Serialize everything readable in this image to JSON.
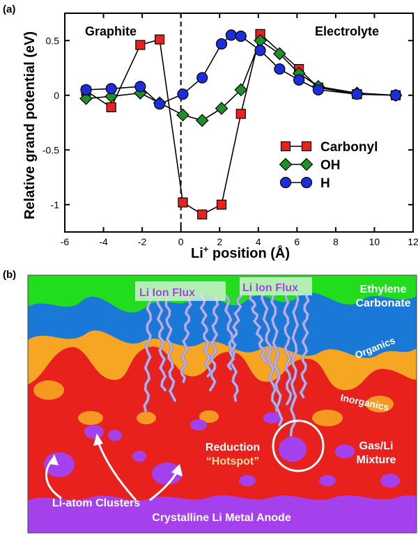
{
  "panel_a_label": "(a)",
  "panel_b_label": "(b)",
  "chart_data": {
    "type": "line",
    "xlabel": "Li",
    "xlabel_sup": "+",
    "xlabel_rest": " position (Å)",
    "ylabel": "Relative grand potential (eV)",
    "xlim": [
      -6,
      12
    ],
    "ylim": [
      -1.25,
      0.75
    ],
    "xticks": [
      -6,
      -4,
      -2,
      0,
      2,
      4,
      6,
      8,
      10,
      12
    ],
    "yticks": [
      0.5,
      0,
      -0.5,
      -1
    ],
    "ytick_labels": [
      "0.5",
      "0",
      "-0.5",
      "-1"
    ],
    "divider_x": 0,
    "region_labels": [
      "Graphite",
      "Electrolyte"
    ],
    "legend_position": "lower-right",
    "series": [
      {
        "name": "Carbonyl",
        "color": "#e8221e",
        "marker": "square",
        "x": [
          -4.9,
          -3.6,
          -2.1,
          -1.1,
          0.1,
          1.1,
          2.1,
          3.1,
          4.1,
          6.1,
          7.1,
          9.1,
          11.1
        ],
        "y": [
          0.04,
          -0.11,
          0.46,
          0.51,
          -0.98,
          -1.09,
          -1.0,
          -0.17,
          0.56,
          0.24,
          0.07,
          0.01,
          0.0
        ]
      },
      {
        "name": "OH",
        "color": "#1f8f2a",
        "marker": "diamond",
        "x": [
          -4.9,
          -3.6,
          -2.1,
          -1.1,
          0.1,
          1.1,
          2.1,
          3.1,
          4.1,
          5.1,
          6.1,
          7.1,
          9.1,
          11.1
        ],
        "y": [
          -0.03,
          -0.01,
          0.02,
          -0.07,
          -0.18,
          -0.23,
          -0.12,
          0.05,
          0.5,
          0.38,
          0.2,
          0.08,
          0.02,
          0.0
        ]
      },
      {
        "name": "H",
        "color": "#1a2fd8",
        "marker": "circle",
        "x": [
          -4.9,
          -3.6,
          -2.1,
          -1.1,
          0.1,
          1.1,
          2.1,
          2.6,
          3.1,
          4.1,
          5.1,
          6.1,
          7.1,
          9.1,
          11.1
        ],
        "y": [
          0.05,
          0.06,
          0.08,
          -0.08,
          0.01,
          0.16,
          0.47,
          0.55,
          0.54,
          0.41,
          0.24,
          0.14,
          0.05,
          0.01,
          0.0
        ]
      }
    ]
  },
  "illustration": {
    "labels": {
      "flux_left": "Li Ion Flux",
      "flux_right": "Li Ion Flux",
      "ethylene": "Ethylene",
      "carbonate": "Carbonate",
      "organics": "Organics",
      "inorganics": "Inorganics",
      "reduction": "Reduction",
      "hotspot": "“Hotspot”",
      "gas_li": "Gas/Li",
      "mixture": "Mixture",
      "clusters": "Li-atom Clusters",
      "anode": "Crystalline Li Metal Anode"
    },
    "colors": {
      "electrolyte": "#22dd1e",
      "organics": "#1a78d6",
      "inorganics": "#f6a623",
      "gas_mixture": "#e8211c",
      "li_metal": "#a441ec",
      "flux": "#b7b3ee"
    }
  }
}
